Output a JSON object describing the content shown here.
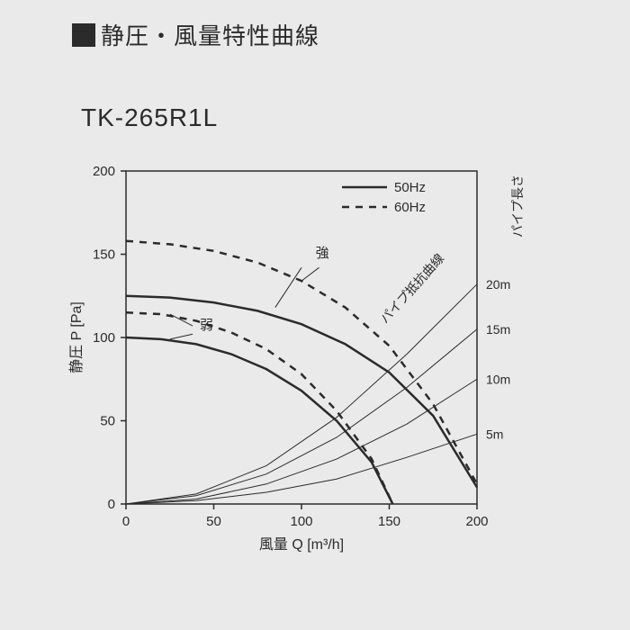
{
  "title": "静圧・風量特性曲線",
  "model": "TK-265R1L",
  "chart": {
    "type": "line",
    "background_color": "#eaeaea",
    "axis_color": "#2b2b2b",
    "text_color": "#2b2b2b",
    "xlabel": "風量 Q [m³/h]",
    "ylabel": "静圧 P [Pa]",
    "label_fontsize": 16,
    "tick_fontsize": 15,
    "xlim": [
      0,
      200
    ],
    "ylim": [
      0,
      200
    ],
    "xtick_step": 50,
    "ytick_step": 50,
    "legend": {
      "items": [
        {
          "label": "50Hz",
          "dash": "solid"
        },
        {
          "label": "60Hz",
          "dash": "dashed"
        }
      ]
    },
    "mode_labels": {
      "strong": "強",
      "weak": "弱"
    },
    "pipe_resistance_label": "パイプ抵抗曲線",
    "pipe_length_label": "パイプ長さ",
    "pipe_length_ticks": [
      "5m",
      "10m",
      "15m",
      "20m"
    ],
    "fan_curves": [
      {
        "name": "strong-50hz",
        "dash": "solid",
        "width": 2.5,
        "color": "#2b2b2b",
        "points": [
          [
            0,
            125
          ],
          [
            25,
            124
          ],
          [
            50,
            121
          ],
          [
            75,
            116
          ],
          [
            100,
            108
          ],
          [
            125,
            96
          ],
          [
            150,
            79
          ],
          [
            175,
            53
          ],
          [
            200,
            10
          ]
        ]
      },
      {
        "name": "strong-60hz",
        "dash": "dashed",
        "width": 2.5,
        "color": "#2b2b2b",
        "points": [
          [
            0,
            158
          ],
          [
            25,
            156
          ],
          [
            50,
            152
          ],
          [
            75,
            145
          ],
          [
            100,
            134
          ],
          [
            125,
            118
          ],
          [
            150,
            95
          ],
          [
            175,
            60
          ],
          [
            200,
            12
          ]
        ]
      },
      {
        "name": "weak-50hz",
        "dash": "solid",
        "width": 2.5,
        "color": "#2b2b2b",
        "points": [
          [
            0,
            100
          ],
          [
            20,
            99
          ],
          [
            40,
            96
          ],
          [
            60,
            90
          ],
          [
            80,
            81
          ],
          [
            100,
            68
          ],
          [
            120,
            50
          ],
          [
            140,
            25
          ],
          [
            152,
            0
          ]
        ]
      },
      {
        "name": "weak-60hz",
        "dash": "dashed",
        "width": 2.5,
        "color": "#2b2b2b",
        "points": [
          [
            0,
            115
          ],
          [
            20,
            114
          ],
          [
            40,
            110
          ],
          [
            60,
            103
          ],
          [
            80,
            93
          ],
          [
            100,
            78
          ],
          [
            120,
            56
          ],
          [
            140,
            27
          ],
          [
            152,
            0
          ]
        ]
      }
    ],
    "pipe_curves": [
      {
        "name": "pipe-5m",
        "color": "#2b2b2b",
        "width": 1,
        "points": [
          [
            0,
            0
          ],
          [
            40,
            2
          ],
          [
            80,
            7
          ],
          [
            120,
            15
          ],
          [
            160,
            28
          ],
          [
            200,
            42
          ]
        ]
      },
      {
        "name": "pipe-10m",
        "color": "#2b2b2b",
        "width": 1,
        "points": [
          [
            0,
            0
          ],
          [
            40,
            3
          ],
          [
            80,
            12
          ],
          [
            120,
            27
          ],
          [
            160,
            48
          ],
          [
            200,
            75
          ]
        ]
      },
      {
        "name": "pipe-15m",
        "color": "#2b2b2b",
        "width": 1,
        "points": [
          [
            0,
            0
          ],
          [
            40,
            5
          ],
          [
            80,
            18
          ],
          [
            120,
            40
          ],
          [
            160,
            70
          ],
          [
            200,
            105
          ]
        ]
      },
      {
        "name": "pipe-20m",
        "color": "#2b2b2b",
        "width": 1,
        "points": [
          [
            0,
            0
          ],
          [
            40,
            6
          ],
          [
            80,
            23
          ],
          [
            120,
            52
          ],
          [
            160,
            90
          ],
          [
            200,
            132
          ]
        ]
      }
    ]
  }
}
